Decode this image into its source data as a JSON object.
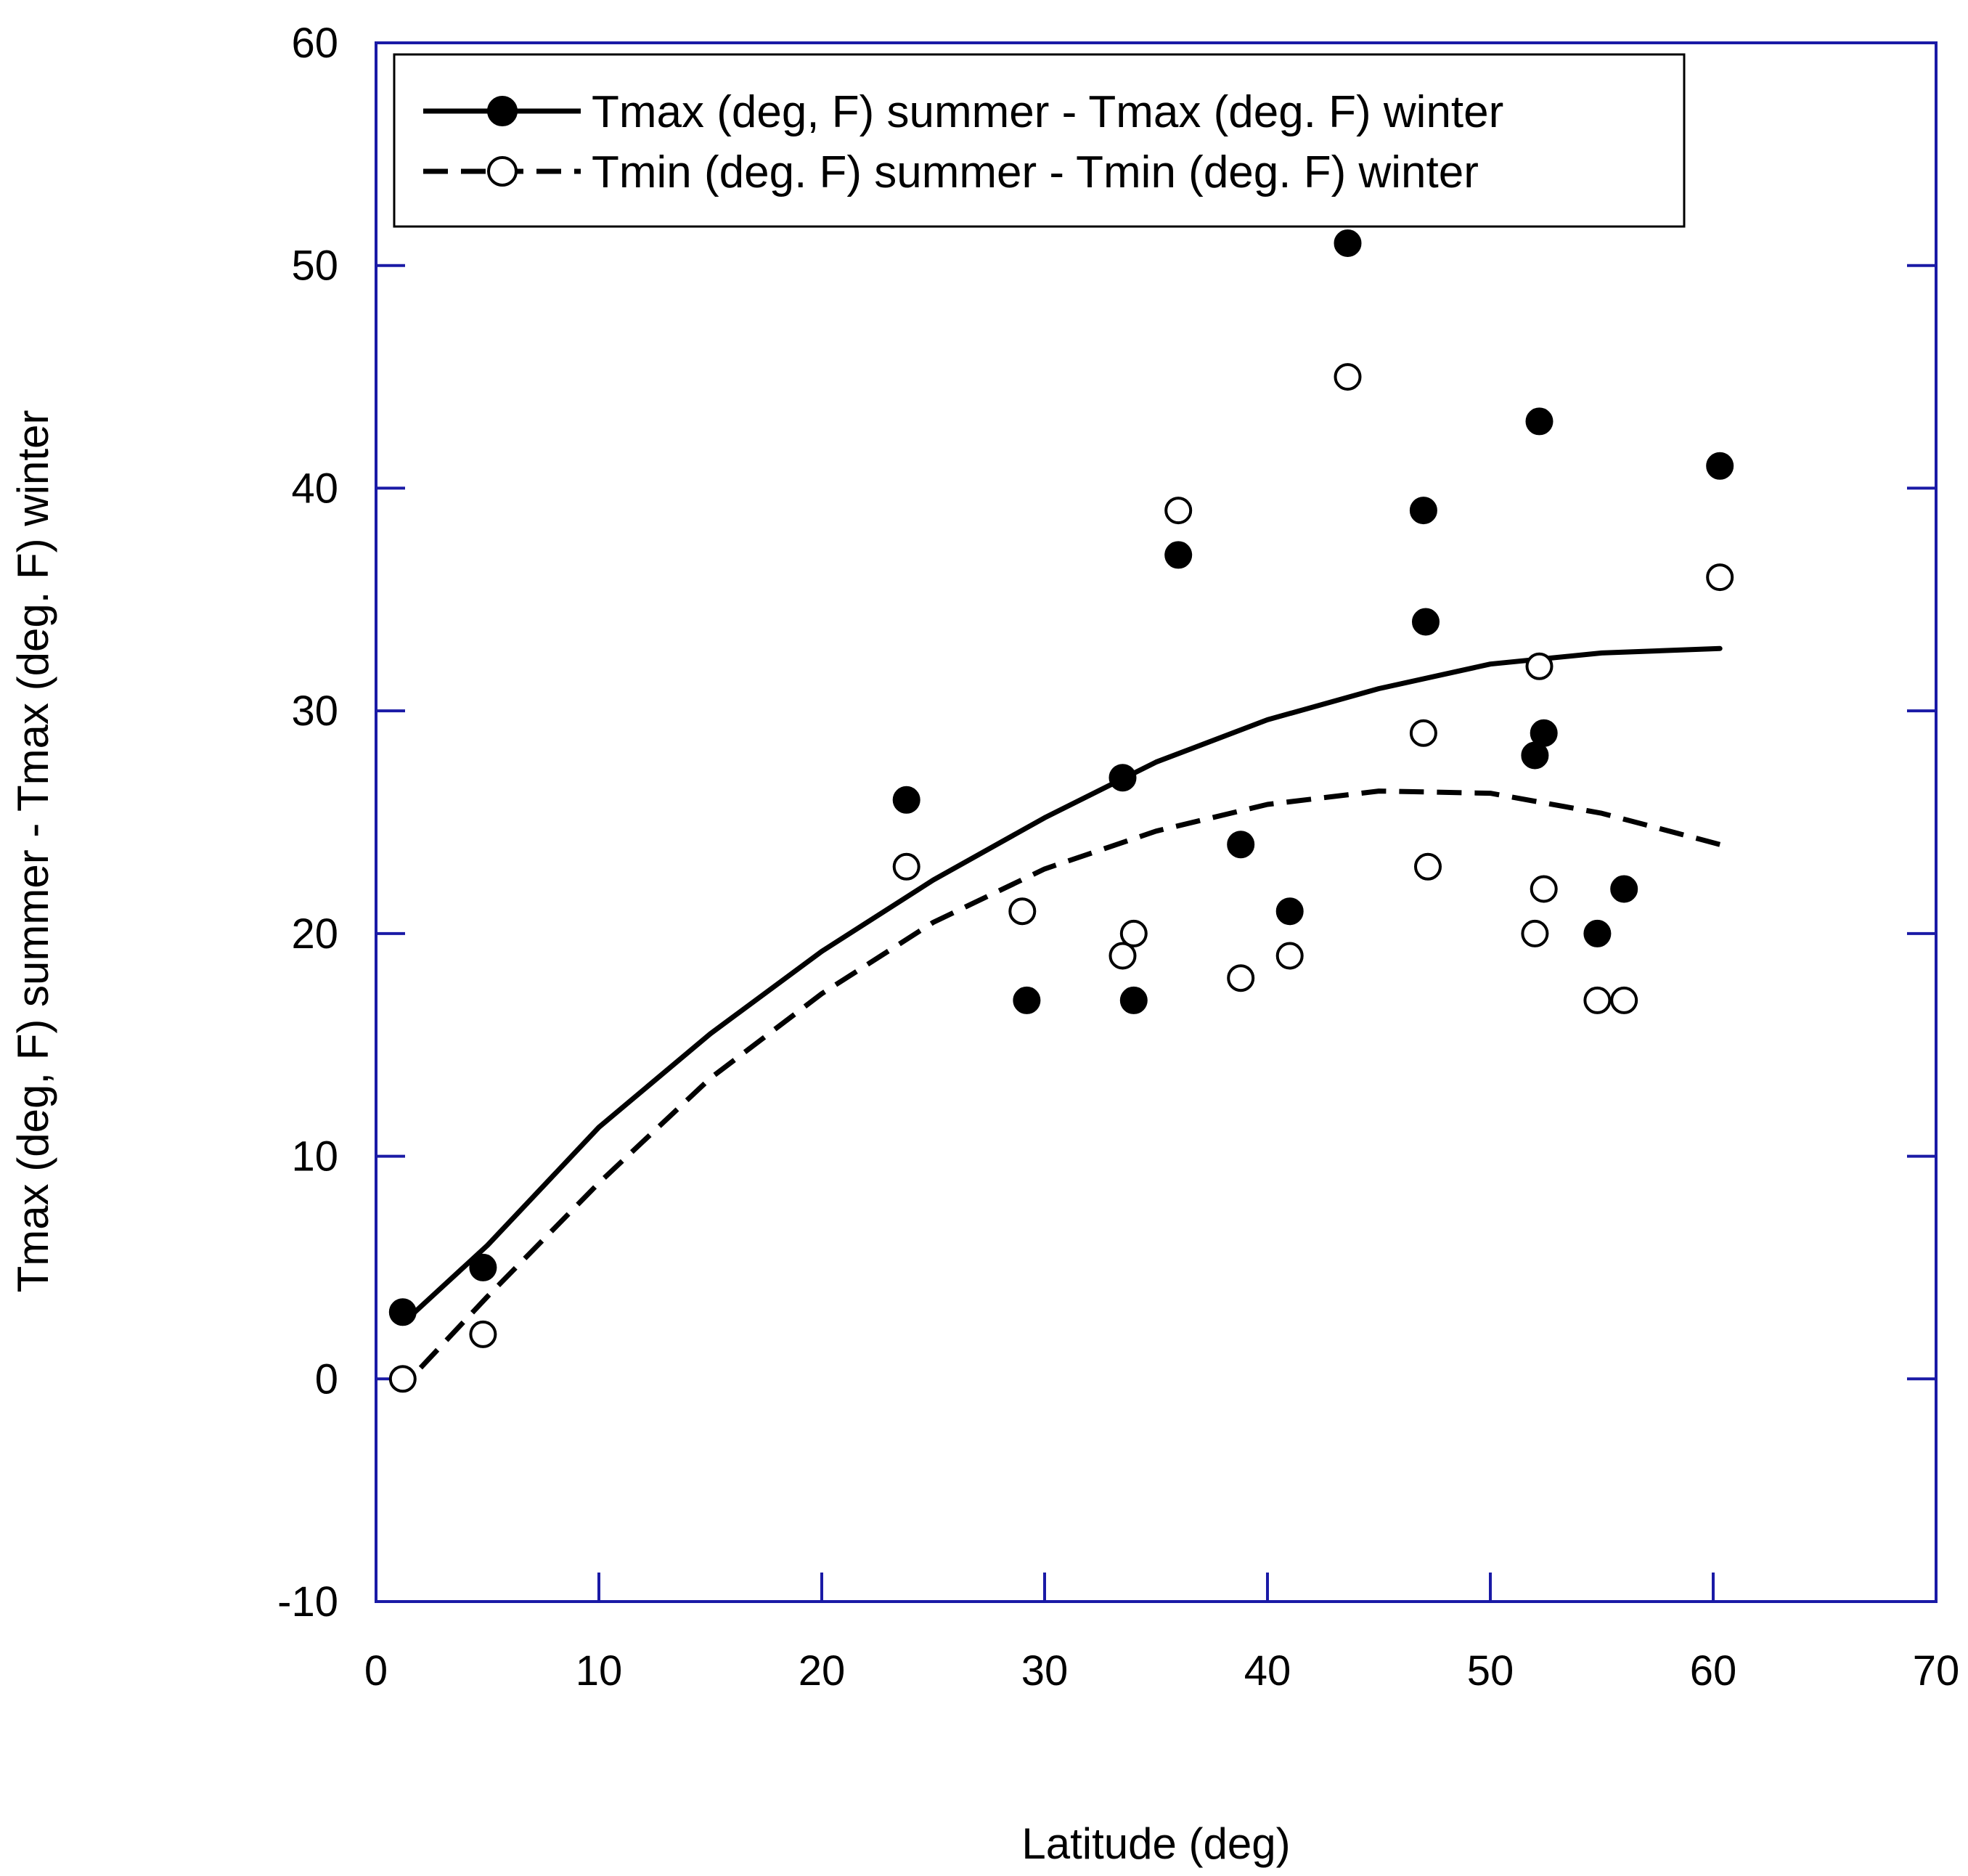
{
  "chart_data": {
    "type": "scatter",
    "title": "",
    "xlabel": "Latitude (deg)",
    "ylabel": "Tmax (deg, F) summer - Tmax (deg. F) winter",
    "xlim": [
      0,
      70
    ],
    "ylim": [
      -10,
      60
    ],
    "x_ticks": [
      0,
      10,
      20,
      30,
      40,
      50,
      60,
      70
    ],
    "y_ticks": [
      -10,
      0,
      10,
      20,
      30,
      40,
      50,
      60
    ],
    "x_tick_labels": [
      "0",
      "10",
      "20",
      "30",
      "40",
      "50",
      "60",
      "70"
    ],
    "y_tick_labels": [
      "-10",
      "0",
      "10",
      "20",
      "30",
      "40",
      "50",
      "60"
    ],
    "grid": false,
    "legend_position": "top",
    "colors": {
      "axis": "#1a1aa6",
      "ink": "#000000",
      "background": "#ffffff"
    },
    "series": [
      {
        "name": "Tmax (deg, F) summer - Tmax (deg. F) winter",
        "marker": "filled-circle",
        "line_style": "solid",
        "points": [
          [
            1.2,
            3
          ],
          [
            4.8,
            5
          ],
          [
            23.8,
            26
          ],
          [
            29.2,
            17
          ],
          [
            33.5,
            27
          ],
          [
            34,
            17
          ],
          [
            36,
            37
          ],
          [
            38.8,
            24
          ],
          [
            41,
            21
          ],
          [
            43.6,
            51
          ],
          [
            47,
            39
          ],
          [
            47.1,
            34
          ],
          [
            52,
            28
          ],
          [
            52.2,
            43
          ],
          [
            52.4,
            29
          ],
          [
            54.8,
            20
          ],
          [
            56,
            22
          ],
          [
            60.3,
            41
          ]
        ],
        "trend": [
          [
            1.2,
            2.5
          ],
          [
            5,
            6
          ],
          [
            10,
            11.3
          ],
          [
            15,
            15.5
          ],
          [
            20,
            19.2
          ],
          [
            25,
            22.4
          ],
          [
            30,
            25.2
          ],
          [
            35,
            27.7
          ],
          [
            40,
            29.6
          ],
          [
            45,
            31
          ],
          [
            50,
            32.1
          ],
          [
            55,
            32.6
          ],
          [
            60.3,
            32.8
          ]
        ]
      },
      {
        "name": "Tmin (deg. F) summer - Tmin (deg. F) winter",
        "marker": "open-circle",
        "line_style": "dashed",
        "points": [
          [
            1.2,
            0
          ],
          [
            4.8,
            2
          ],
          [
            23.8,
            23
          ],
          [
            29,
            21
          ],
          [
            33.5,
            19
          ],
          [
            34,
            20
          ],
          [
            36,
            39
          ],
          [
            38.8,
            18
          ],
          [
            41,
            19
          ],
          [
            43.6,
            45
          ],
          [
            47,
            29
          ],
          [
            47.2,
            23
          ],
          [
            52,
            20
          ],
          [
            52.2,
            32
          ],
          [
            52.4,
            22
          ],
          [
            54.8,
            17
          ],
          [
            56,
            17
          ],
          [
            60.3,
            36
          ]
        ],
        "trend": [
          [
            2,
            0.5
          ],
          [
            5,
            3.7
          ],
          [
            10,
            8.8
          ],
          [
            15,
            13.5
          ],
          [
            20,
            17.3
          ],
          [
            25,
            20.5
          ],
          [
            30,
            22.9
          ],
          [
            35,
            24.6
          ],
          [
            40,
            25.8
          ],
          [
            45,
            26.4
          ],
          [
            50,
            26.3
          ],
          [
            55,
            25.4
          ],
          [
            60.3,
            24
          ]
        ]
      }
    ]
  }
}
